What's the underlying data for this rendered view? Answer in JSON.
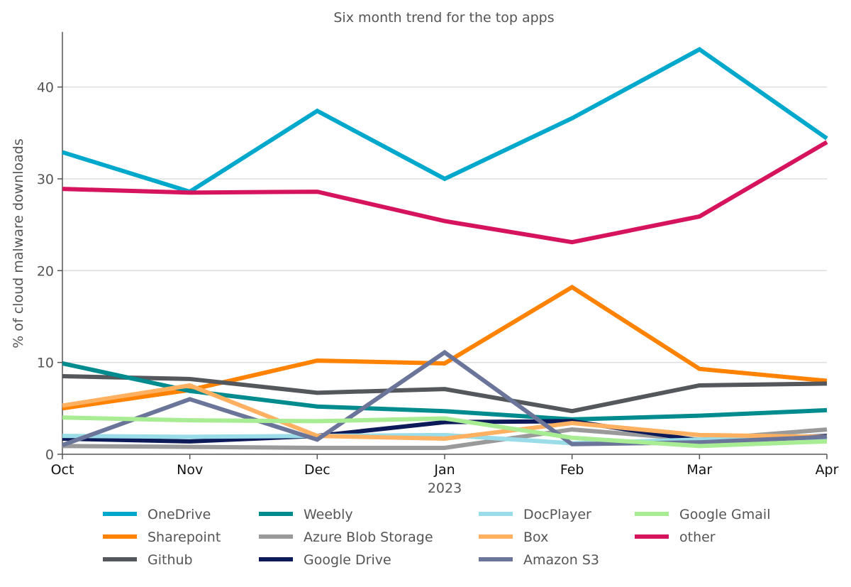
{
  "chart_data": {
    "type": "line",
    "title": "Six month trend for the top apps",
    "xlabel": "",
    "ylabel": "% of cloud malware downloads",
    "categories": [
      "Oct",
      "Nov",
      "Dec",
      "Jan",
      "Feb",
      "Mar",
      "Apr"
    ],
    "x_sublabel": {
      "index": 3,
      "text": "2023"
    },
    "ylim": [
      0,
      46
    ],
    "yticks": [
      0,
      10,
      20,
      30,
      40
    ],
    "grid": "horizontal",
    "legend_position": "bottom",
    "series": [
      {
        "name": "OneDrive",
        "color": "#00a8cc",
        "values": [
          32.9,
          28.6,
          37.4,
          30.0,
          36.6,
          44.1,
          34.4
        ]
      },
      {
        "name": "Sharepoint",
        "color": "#ff8200",
        "values": [
          5.0,
          7.0,
          10.2,
          9.9,
          18.2,
          9.3,
          8.0
        ]
      },
      {
        "name": "Github",
        "color": "#54575b",
        "values": [
          8.5,
          8.2,
          6.7,
          7.1,
          4.7,
          7.5,
          7.7
        ]
      },
      {
        "name": "Weebly",
        "color": "#008b8f",
        "values": [
          9.9,
          6.9,
          5.2,
          4.7,
          3.8,
          4.2,
          4.8
        ]
      },
      {
        "name": "Azure Blob Storage",
        "color": "#9a9a9a",
        "values": [
          0.9,
          0.8,
          0.7,
          0.7,
          2.7,
          1.6,
          2.7
        ]
      },
      {
        "name": "Google Drive",
        "color": "#0c1a5a",
        "values": [
          1.7,
          1.4,
          2.0,
          3.5,
          3.6,
          1.5,
          2.0
        ]
      },
      {
        "name": "DocPlayer",
        "color": "#9adce8",
        "values": [
          2.0,
          1.9,
          2.0,
          2.1,
          1.2,
          1.6,
          1.8
        ]
      },
      {
        "name": "Box",
        "color": "#ffb060",
        "values": [
          5.3,
          7.5,
          2.0,
          1.7,
          3.4,
          2.1,
          1.9
        ]
      },
      {
        "name": "Amazon S3",
        "color": "#6b7599",
        "values": [
          1.0,
          6.0,
          1.6,
          11.1,
          1.1,
          1.3,
          1.9
        ]
      },
      {
        "name": "Google Gmail",
        "color": "#a8ec94",
        "values": [
          4.0,
          3.7,
          3.6,
          3.9,
          1.8,
          0.9,
          1.4
        ]
      },
      {
        "name": "other",
        "color": "#d6145e",
        "values": [
          28.9,
          28.5,
          28.6,
          25.4,
          23.1,
          25.9,
          34.0
        ]
      }
    ]
  }
}
